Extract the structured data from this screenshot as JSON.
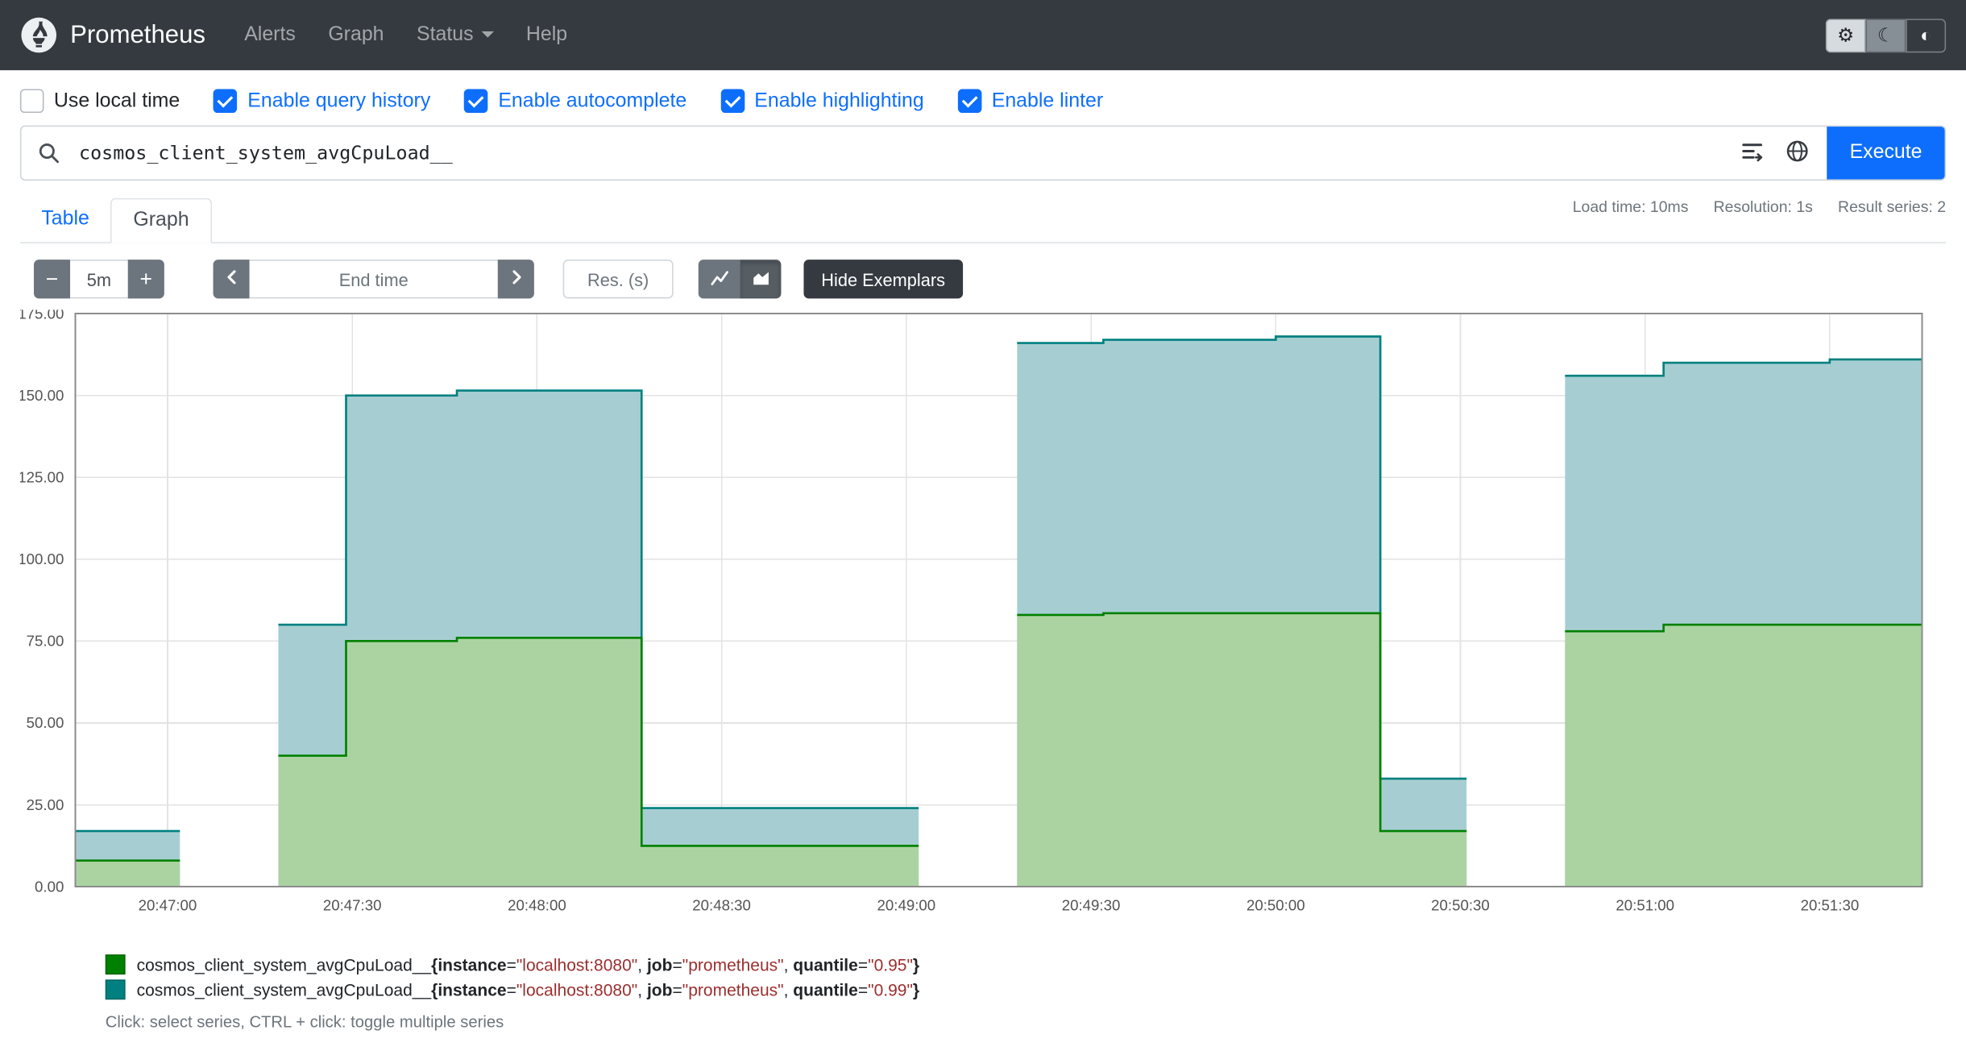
{
  "navbar": {
    "brand": "Prometheus",
    "items": [
      {
        "label": "Alerts"
      },
      {
        "label": "Graph"
      },
      {
        "label": "Status",
        "dropdown": true
      },
      {
        "label": "Help"
      }
    ],
    "icons": {
      "gear": "⚙",
      "moon": "☾",
      "contrast": "◐"
    }
  },
  "options": {
    "items": [
      {
        "label": "Use local time",
        "checked": false
      },
      {
        "label": "Enable query history",
        "checked": true
      },
      {
        "label": "Enable autocomplete",
        "checked": true
      },
      {
        "label": "Enable highlighting",
        "checked": true
      },
      {
        "label": "Enable linter",
        "checked": true
      }
    ]
  },
  "query": {
    "value": "cosmos_client_system_avgCpuLoad__",
    "execute_label": "Execute"
  },
  "tabs": {
    "table": "Table",
    "graph": "Graph",
    "active": "Graph"
  },
  "stats": {
    "load_time": "Load time: 10ms",
    "resolution": "Resolution: 1s",
    "result_series": "Result series: 2"
  },
  "toolbar": {
    "zoom_out_icon": "−",
    "range_value": "5m",
    "zoom_in_icon": "+",
    "end_time_placeholder": "End time",
    "res_placeholder": "Res. (s)",
    "hide_exemplars_label": "Hide Exemplars"
  },
  "chart_data": {
    "type": "area",
    "title": "",
    "xlabel": "",
    "ylabel": "",
    "x_unit": "seconds relative to 20:47:00",
    "xlim": [
      -15,
      285
    ],
    "ylim": [
      0,
      175
    ],
    "grid": true,
    "legend_position": "bottom-left",
    "yticks": [
      {
        "v": 0,
        "label": "0.00"
      },
      {
        "v": 25,
        "label": "25.00"
      },
      {
        "v": 50,
        "label": "50.00"
      },
      {
        "v": 75,
        "label": "75.00"
      },
      {
        "v": 100,
        "label": "100.00"
      },
      {
        "v": 125,
        "label": "125.00"
      },
      {
        "v": 150,
        "label": "150.00"
      },
      {
        "v": 175,
        "label": "175.00"
      }
    ],
    "xticks": [
      {
        "t": 0,
        "label": "20:47:00"
      },
      {
        "t": 30,
        "label": "20:47:30"
      },
      {
        "t": 60,
        "label": "20:48:00"
      },
      {
        "t": 90,
        "label": "20:48:30"
      },
      {
        "t": 120,
        "label": "20:49:00"
      },
      {
        "t": 150,
        "label": "20:49:30"
      },
      {
        "t": 180,
        "label": "20:50:00"
      },
      {
        "t": 210,
        "label": "20:50:30"
      },
      {
        "t": 240,
        "label": "20:51:00"
      },
      {
        "t": 270,
        "label": "20:51:30"
      }
    ],
    "series": [
      {
        "metric": "cosmos_client_system_avgCpuLoad__",
        "labels": [
          [
            "instance",
            "localhost:8080"
          ],
          [
            "job",
            "prometheus"
          ],
          [
            "quantile",
            "0.95"
          ]
        ],
        "color": "#008000",
        "fill": "#abd3a2",
        "draw_order": 2,
        "segments": [
          [
            [
              -15,
              8
            ],
            [
              2,
              8
            ]
          ],
          [
            [
              18,
              40
            ],
            [
              29,
              40
            ],
            [
              29,
              75
            ],
            [
              47,
              75
            ],
            [
              47,
              76
            ],
            [
              77,
              76
            ],
            [
              77,
              12.5
            ],
            [
              122,
              12.5
            ]
          ],
          [
            [
              138,
              83
            ],
            [
              152,
              83
            ],
            [
              152,
              83.5
            ],
            [
              197,
              83.5
            ],
            [
              197,
              17
            ],
            [
              211,
              17
            ]
          ],
          [
            [
              227,
              78
            ],
            [
              243,
              78
            ],
            [
              243,
              80
            ],
            [
              285,
              80
            ]
          ]
        ]
      },
      {
        "metric": "cosmos_client_system_avgCpuLoad__",
        "labels": [
          [
            "instance",
            "localhost:8080"
          ],
          [
            "job",
            "prometheus"
          ],
          [
            "quantile",
            "0.99"
          ]
        ],
        "color": "#008080",
        "fill": "#a6ced2",
        "draw_order": 1,
        "segments": [
          [
            [
              -15,
              17
            ],
            [
              2,
              17
            ]
          ],
          [
            [
              18,
              80
            ],
            [
              29,
              80
            ],
            [
              29,
              150
            ],
            [
              47,
              150
            ],
            [
              47,
              151.5
            ],
            [
              77,
              151.5
            ],
            [
              77,
              24
            ],
            [
              122,
              24
            ]
          ],
          [
            [
              138,
              166
            ],
            [
              152,
              166
            ],
            [
              152,
              167
            ],
            [
              180,
              167
            ],
            [
              180,
              168
            ],
            [
              197,
              168
            ],
            [
              197,
              33
            ],
            [
              211,
              33
            ]
          ],
          [
            [
              227,
              156
            ],
            [
              243,
              156
            ],
            [
              243,
              160
            ],
            [
              270,
              160
            ],
            [
              270,
              161
            ],
            [
              285,
              161
            ]
          ]
        ]
      }
    ]
  },
  "legend_hint": "Click: select series, CTRL + click: toggle multiple series"
}
